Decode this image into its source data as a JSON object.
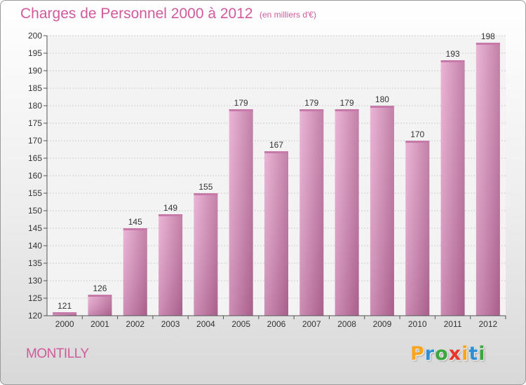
{
  "header": {
    "title": "Charges de Personnel 2000 à 2012",
    "subtitle": "(en milliers d'€)"
  },
  "footer": {
    "commune": "MONTILLY",
    "logo": {
      "letters": [
        "P",
        "r",
        "o",
        "x",
        "i",
        "t",
        "i"
      ],
      "colors": [
        "#f7a51b",
        "#2f8fd6",
        "#3aa83d",
        "#e8352a",
        "#f7a51b",
        "#2f8fd6",
        "#3aa83d"
      ]
    }
  },
  "colors": {
    "bar_light": "#e7a8cf",
    "bar_mid": "#d793bd",
    "bar_dark": "#b86a98",
    "bar_top": "#c77aa9",
    "accent": "#d05a9c"
  },
  "chart_data": {
    "type": "bar",
    "categories": [
      "2000",
      "2001",
      "2002",
      "2003",
      "2004",
      "2005",
      "2006",
      "2007",
      "2008",
      "2009",
      "2010",
      "2011",
      "2012"
    ],
    "values": [
      121,
      126,
      145,
      149,
      155,
      179,
      167,
      179,
      179,
      180,
      170,
      193,
      198
    ],
    "ylim": [
      120,
      200
    ],
    "yticks": [
      120,
      125,
      130,
      135,
      140,
      145,
      150,
      155,
      160,
      165,
      170,
      175,
      180,
      185,
      190,
      195,
      200
    ],
    "grid": true,
    "xlabel": "",
    "ylabel": ""
  }
}
